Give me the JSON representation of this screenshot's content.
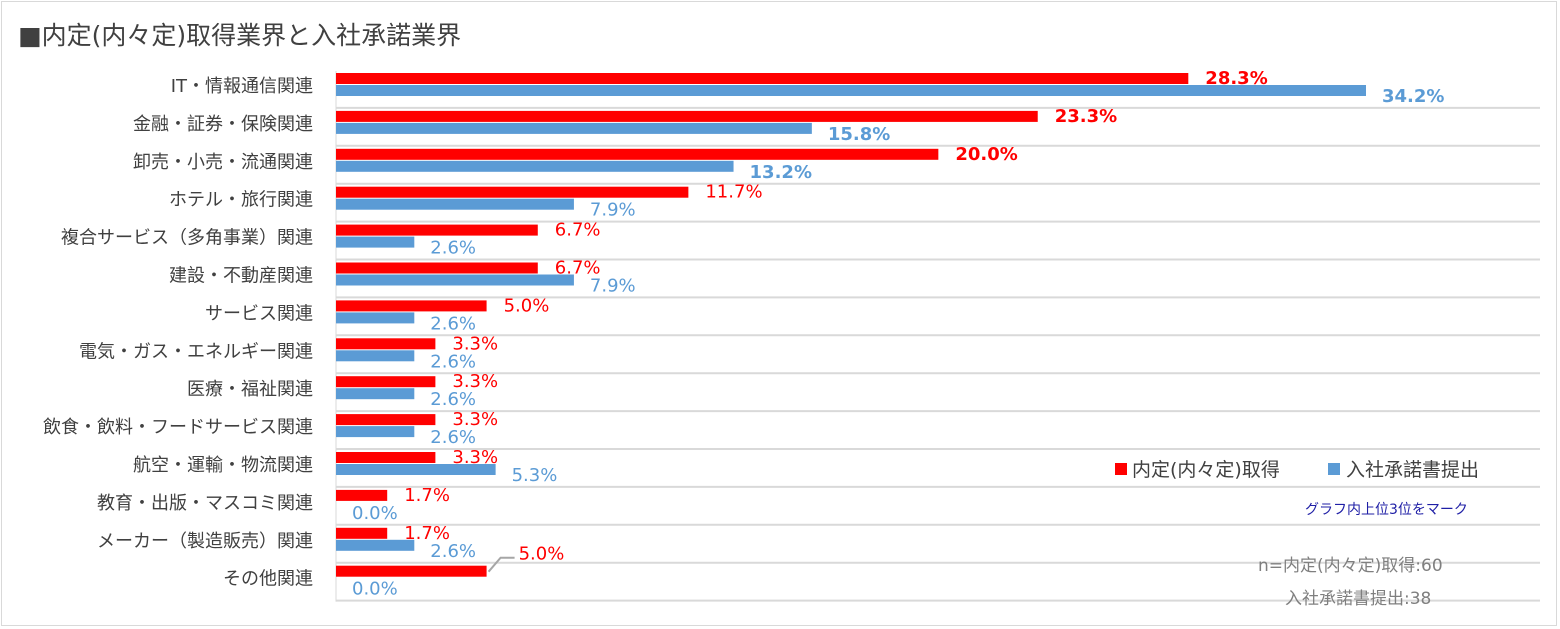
{
  "chart_data": {
    "type": "bar",
    "orientation": "horizontal",
    "title": "■内定(内々定)取得業界と入社承諾業界",
    "categories": [
      "IT・情報通信関連",
      "金融・証券・保険関連",
      "卸売・小売・流通関連",
      "ホテル・旅行関連",
      "複合サービス（多角事業）関連",
      "建設・不動産関連",
      "サービス関連",
      "電気・ガス・エネルギー関連",
      "医療・福祉関連",
      "飲食・飲料・フードサービス関連",
      "航空・運輸・物流関連",
      "教育・出版・マスコミ関連",
      "メーカー（製造販売）関連",
      "その他関連"
    ],
    "series": [
      {
        "name": "内定(内々定)取得",
        "color": "#ff0000",
        "values": [
          28.3,
          23.3,
          20.0,
          11.7,
          6.7,
          6.7,
          5.0,
          3.3,
          3.3,
          3.3,
          3.3,
          1.7,
          1.7,
          5.0
        ],
        "labels": [
          "28.3%",
          "23.3%",
          "20.0%",
          "11.7%",
          "6.7%",
          "6.7%",
          "5.0%",
          "3.3%",
          "3.3%",
          "3.3%",
          "3.3%",
          "1.7%",
          "1.7%",
          "5.0%"
        ],
        "top3": [
          true,
          true,
          true,
          false,
          false,
          false,
          false,
          false,
          false,
          false,
          false,
          false,
          false,
          false
        ]
      },
      {
        "name": "入社承諾書提出",
        "color": "#5b9bd5",
        "values": [
          34.2,
          15.8,
          13.2,
          7.9,
          2.6,
          7.9,
          2.6,
          2.6,
          2.6,
          2.6,
          5.3,
          0.0,
          2.6,
          0.0
        ],
        "labels": [
          "34.2%",
          "15.8%",
          "13.2%",
          "7.9%",
          "2.6%",
          "7.9%",
          "2.6%",
          "2.6%",
          "2.6%",
          "2.6%",
          "5.3%",
          "0.0%",
          "2.6%",
          "0.0%"
        ],
        "top3": [
          true,
          true,
          true,
          false,
          false,
          false,
          false,
          false,
          false,
          false,
          false,
          false,
          false,
          false
        ]
      }
    ],
    "xlim": [
      0,
      34.2
    ],
    "grid": true,
    "legend": "right",
    "note": "グラフ内上位3位をマーク",
    "sample_notes": [
      "n=内定(内々定)取得:60",
      "入社承諾書提出:38"
    ]
  }
}
